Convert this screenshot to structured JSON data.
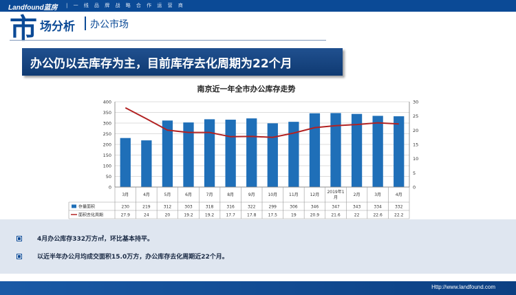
{
  "header": {
    "logo": "Landfound蓝房",
    "slogan": "| 一 线 品 牌 战 略 合 作 运 营 商",
    "section_char": "市",
    "section_rest": "场分析",
    "section_sub": "办公市场"
  },
  "banner": {
    "title": "办公仍以去库存为主，目前库存去化周期为22个月"
  },
  "colors": {
    "brand": "#0b4a96",
    "bar": "#1f6fb8",
    "line": "#b22222"
  },
  "icons": {
    "bullet": "square-bullet-icon"
  },
  "chart_data": {
    "type": "bar",
    "title": "南京近一年全市办公库存走势",
    "categories": [
      "3月",
      "4月",
      "5月",
      "6月",
      "7月",
      "8月",
      "9月",
      "10月",
      "11月",
      "12月",
      "2019年1月",
      "2月",
      "3月",
      "4月"
    ],
    "series": [
      {
        "name": "存量面积",
        "type": "bar",
        "axis": "left",
        "values": [
          230,
          219,
          312,
          303,
          318,
          316,
          322,
          299,
          306,
          346,
          347,
          343,
          334,
          332
        ],
        "labels": [
          "230",
          "219",
          "312",
          "303",
          "318",
          "316",
          "322",
          "299",
          "306",
          "346",
          "347",
          "343",
          "334",
          "332"
        ]
      },
      {
        "name": "面积去化周期",
        "type": "line",
        "axis": "right",
        "values": [
          27.9,
          24,
          20,
          19.2,
          19.2,
          17.7,
          17.8,
          17.5,
          19,
          20.9,
          21.6,
          22,
          22.6,
          22.2
        ],
        "labels": [
          "27.9",
          "24",
          "20",
          "19.2",
          "19.2",
          "17.7",
          "17.8",
          "17.5",
          "19",
          "20.9",
          "21.6",
          "22",
          "22.6",
          "22.2"
        ]
      }
    ],
    "ylim": [
      0,
      400
    ],
    "y_ticks": [
      "0",
      "50",
      "100",
      "150",
      "200",
      "250",
      "300",
      "350",
      "400"
    ],
    "y2lim": [
      0,
      30
    ],
    "y2_ticks": [
      "0",
      "5",
      "10",
      "15",
      "20",
      "25",
      "30"
    ],
    "grid": true,
    "legend": "data-table"
  },
  "info": {
    "items": [
      "4月办公库存332万方㎡，环比基本持平。",
      "以近半年办公月均成交面积15.0万方，办公库存去化周期近22个月。"
    ]
  },
  "footer": {
    "url": "Http://www.landfound.com"
  }
}
